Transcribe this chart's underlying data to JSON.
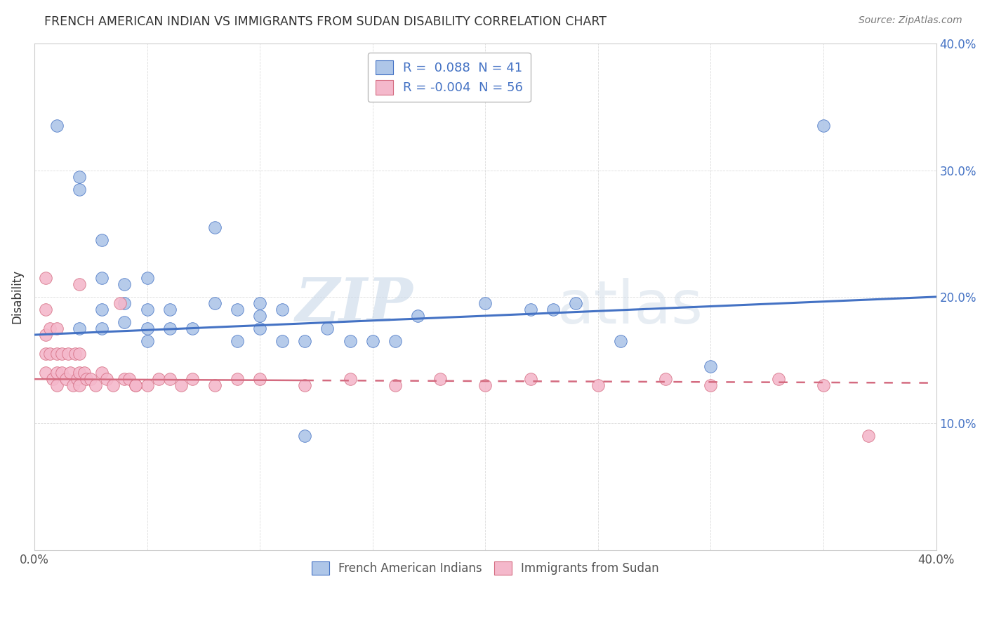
{
  "title": "FRENCH AMERICAN INDIAN VS IMMIGRANTS FROM SUDAN DISABILITY CORRELATION CHART",
  "source": "Source: ZipAtlas.com",
  "ylabel": "Disability",
  "watermark_zip": "ZIP",
  "watermark_atlas": "atlas",
  "xlim": [
    0.0,
    0.4
  ],
  "ylim": [
    0.0,
    0.4
  ],
  "xtick_positions": [
    0.0,
    0.05,
    0.1,
    0.15,
    0.2,
    0.25,
    0.3,
    0.35,
    0.4
  ],
  "xtick_labels": [
    "0.0%",
    "",
    "",
    "",
    "",
    "",
    "",
    "",
    "40.0%"
  ],
  "ytick_positions": [
    0.0,
    0.1,
    0.2,
    0.3,
    0.4
  ],
  "ytick_labels_right": [
    "",
    "10.0%",
    "20.0%",
    "30.0%",
    "40.0%"
  ],
  "legend_r1": "R =  0.088",
  "legend_n1": "N = 41",
  "legend_r2": "R = -0.004",
  "legend_n2": "N = 56",
  "color_blue": "#aec6e8",
  "color_pink": "#f4b8cb",
  "line_blue": "#4472c4",
  "line_pink": "#d46b80",
  "legend_label1": "French American Indians",
  "legend_label2": "Immigrants from Sudan",
  "blue_scatter_x": [
    0.01,
    0.02,
    0.02,
    0.03,
    0.03,
    0.03,
    0.04,
    0.04,
    0.04,
    0.05,
    0.05,
    0.05,
    0.06,
    0.06,
    0.07,
    0.08,
    0.08,
    0.09,
    0.1,
    0.1,
    0.1,
    0.11,
    0.12,
    0.13,
    0.14,
    0.15,
    0.16,
    0.17,
    0.2,
    0.22,
    0.23,
    0.24,
    0.26,
    0.3,
    0.35,
    0.02,
    0.03,
    0.05,
    0.09,
    0.11,
    0.12
  ],
  "blue_scatter_y": [
    0.335,
    0.295,
    0.285,
    0.245,
    0.215,
    0.19,
    0.21,
    0.195,
    0.18,
    0.215,
    0.19,
    0.175,
    0.19,
    0.175,
    0.175,
    0.195,
    0.255,
    0.19,
    0.195,
    0.185,
    0.175,
    0.19,
    0.165,
    0.175,
    0.165,
    0.165,
    0.165,
    0.185,
    0.195,
    0.19,
    0.19,
    0.195,
    0.165,
    0.145,
    0.335,
    0.175,
    0.175,
    0.165,
    0.165,
    0.165,
    0.09
  ],
  "pink_scatter_x": [
    0.005,
    0.005,
    0.005,
    0.005,
    0.005,
    0.007,
    0.007,
    0.008,
    0.01,
    0.01,
    0.01,
    0.01,
    0.012,
    0.012,
    0.014,
    0.015,
    0.016,
    0.017,
    0.018,
    0.019,
    0.02,
    0.02,
    0.02,
    0.02,
    0.022,
    0.023,
    0.025,
    0.027,
    0.03,
    0.032,
    0.035,
    0.04,
    0.042,
    0.045,
    0.05,
    0.055,
    0.06,
    0.065,
    0.07,
    0.08,
    0.09,
    0.1,
    0.12,
    0.14,
    0.16,
    0.18,
    0.2,
    0.22,
    0.25,
    0.28,
    0.3,
    0.33,
    0.35,
    0.37,
    0.038,
    0.045
  ],
  "pink_scatter_y": [
    0.215,
    0.19,
    0.17,
    0.155,
    0.14,
    0.175,
    0.155,
    0.135,
    0.175,
    0.155,
    0.14,
    0.13,
    0.155,
    0.14,
    0.135,
    0.155,
    0.14,
    0.13,
    0.155,
    0.135,
    0.21,
    0.155,
    0.14,
    0.13,
    0.14,
    0.135,
    0.135,
    0.13,
    0.14,
    0.135,
    0.13,
    0.135,
    0.135,
    0.13,
    0.13,
    0.135,
    0.135,
    0.13,
    0.135,
    0.13,
    0.135,
    0.135,
    0.13,
    0.135,
    0.13,
    0.135,
    0.13,
    0.135,
    0.13,
    0.135,
    0.13,
    0.135,
    0.13,
    0.09,
    0.195,
    0.13
  ],
  "blue_line_y_start": 0.17,
  "blue_line_y_end": 0.2,
  "pink_line_y_start": 0.135,
  "pink_line_y_end": 0.132
}
